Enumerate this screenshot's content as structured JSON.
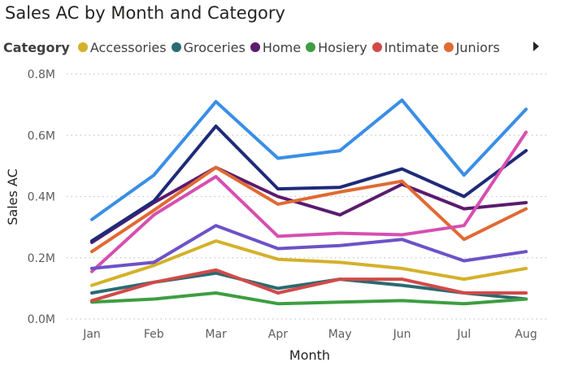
{
  "chart_data": {
    "type": "line",
    "title": "Sales AC by Month and Category",
    "xlabel": "Month",
    "ylabel": "Sales AC",
    "categories": [
      "Jan",
      "Feb",
      "Mar",
      "Apr",
      "May",
      "Jun",
      "Jul",
      "Aug"
    ],
    "ylim": [
      0,
      0.8
    ],
    "yticks": [
      {
        "value": 0,
        "label": "0.0M"
      },
      {
        "value": 0.2,
        "label": "0.2M"
      },
      {
        "value": 0.4,
        "label": "0.4M"
      },
      {
        "value": 0.6,
        "label": "0.6M"
      },
      {
        "value": 0.8,
        "label": "0.8M"
      }
    ],
    "grid": "dotted horizontal",
    "legend": {
      "title": "Category",
      "placement": "top",
      "entries": [
        {
          "name": "Accessories",
          "color": "#d4b12a"
        },
        {
          "name": "Groceries",
          "color": "#2b6a72"
        },
        {
          "name": "Home",
          "color": "#5b1b6e"
        },
        {
          "name": "Hosiery",
          "color": "#3d9e41"
        },
        {
          "name": "Intimate",
          "color": "#d14a48"
        },
        {
          "name": "Juniors",
          "color": "#e06a33"
        }
      ]
    },
    "series": [
      {
        "name": "Accessories",
        "color": "#d4b12a",
        "values": [
          0.11,
          0.175,
          0.255,
          0.195,
          0.185,
          0.165,
          0.13,
          0.165
        ]
      },
      {
        "name": "Groceries",
        "color": "#2b6a72",
        "values": [
          0.085,
          0.12,
          0.15,
          0.1,
          0.13,
          0.11,
          0.085,
          0.065
        ]
      },
      {
        "name": "Home",
        "color": "#5b1b6e",
        "values": [
          0.25,
          0.38,
          0.495,
          0.4,
          0.34,
          0.44,
          0.36,
          0.38
        ]
      },
      {
        "name": "Hosiery",
        "color": "#3d9e41",
        "values": [
          0.055,
          0.065,
          0.085,
          0.05,
          0.055,
          0.06,
          0.05,
          0.065
        ]
      },
      {
        "name": "Intimate",
        "color": "#d14a48",
        "values": [
          0.06,
          0.12,
          0.16,
          0.085,
          0.13,
          0.13,
          0.085,
          0.085
        ]
      },
      {
        "name": "Juniors",
        "color": "#e06a33",
        "values": [
          0.22,
          0.355,
          0.495,
          0.375,
          0.415,
          0.45,
          0.26,
          0.36
        ]
      },
      {
        "color": "#3a8ee6",
        "values": [
          0.325,
          0.47,
          0.71,
          0.525,
          0.55,
          0.715,
          0.47,
          0.685
        ]
      },
      {
        "color": "#1f2a78",
        "values": [
          0.255,
          0.385,
          0.63,
          0.425,
          0.43,
          0.49,
          0.4,
          0.55
        ]
      },
      {
        "color": "#d64fb0",
        "values": [
          0.155,
          0.34,
          0.465,
          0.27,
          0.28,
          0.275,
          0.305,
          0.61
        ]
      },
      {
        "color": "#6e52c7",
        "values": [
          0.165,
          0.185,
          0.305,
          0.23,
          0.24,
          0.26,
          0.19,
          0.22
        ]
      }
    ]
  }
}
